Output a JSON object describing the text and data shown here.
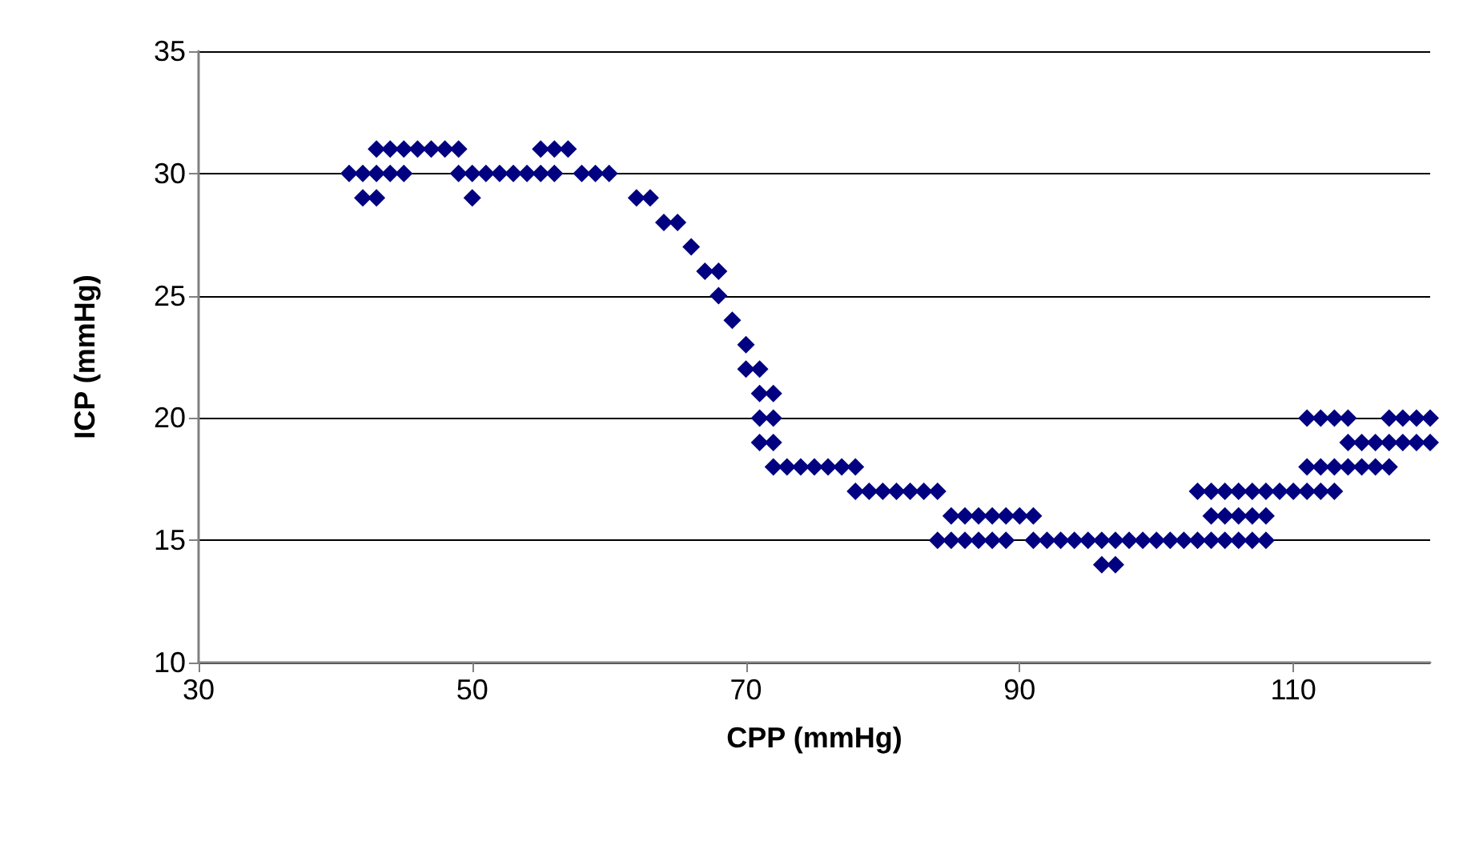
{
  "chart_data": {
    "type": "scatter",
    "xlabel": "CPP (mmHg)",
    "ylabel": "ICP (mmHg)",
    "xlim": [
      30,
      120
    ],
    "xticks": [
      30,
      50,
      70,
      90,
      110
    ],
    "ylim": [
      10,
      35
    ],
    "yticks": [
      10,
      15,
      20,
      25,
      30,
      35
    ],
    "grid": "y",
    "marker": "diamond",
    "series": [
      {
        "color": "#000080",
        "x": [
          41,
          42,
          43,
          44,
          45,
          42,
          43,
          43,
          44,
          45,
          46,
          47,
          48,
          49,
          49,
          50,
          51,
          52,
          53,
          54,
          55,
          56,
          50,
          55,
          56,
          57,
          58,
          59,
          60,
          62,
          63,
          64,
          65,
          66,
          67,
          68,
          68,
          69,
          70,
          70,
          71,
          71,
          72,
          71,
          72,
          71,
          72,
          72,
          73,
          74,
          75,
          76,
          77,
          78,
          78,
          79,
          80,
          81,
          82,
          83,
          84,
          85,
          86,
          87,
          88,
          89,
          90,
          91,
          84,
          85,
          86,
          87,
          88,
          89,
          91,
          92,
          93,
          94,
          95,
          96,
          97,
          98,
          99,
          100,
          101,
          102,
          103,
          104,
          105,
          106,
          107,
          108,
          96,
          97,
          103,
          104,
          105,
          106,
          107,
          108,
          109,
          110,
          111,
          112,
          113,
          104,
          105,
          106,
          107,
          108,
          111,
          112,
          113,
          114,
          115,
          116,
          117,
          111,
          112,
          113,
          114,
          114,
          115,
          116,
          117,
          118,
          119,
          120,
          117,
          118,
          119,
          120
        ],
        "values": [
          30,
          30,
          30,
          30,
          30,
          29,
          29,
          31,
          31,
          31,
          31,
          31,
          31,
          31,
          30,
          30,
          30,
          30,
          30,
          30,
          30,
          30,
          29,
          31,
          31,
          31,
          30,
          30,
          30,
          29,
          29,
          28,
          28,
          27,
          26,
          26,
          25,
          24,
          23,
          22,
          22,
          21,
          21,
          20,
          20,
          19,
          19,
          18,
          18,
          18,
          18,
          18,
          18,
          18,
          17,
          17,
          17,
          17,
          17,
          17,
          17,
          16,
          16,
          16,
          16,
          16,
          16,
          16,
          15,
          15,
          15,
          15,
          15,
          15,
          15,
          15,
          15,
          15,
          15,
          15,
          15,
          15,
          15,
          15,
          15,
          15,
          15,
          15,
          15,
          15,
          15,
          15,
          14,
          14,
          17,
          17,
          17,
          17,
          17,
          17,
          17,
          17,
          17,
          17,
          17,
          16,
          16,
          16,
          16,
          16,
          18,
          18,
          18,
          18,
          18,
          18,
          18,
          20,
          20,
          20,
          20,
          19,
          19,
          19,
          19,
          19,
          19,
          19,
          20,
          20,
          20,
          20
        ]
      }
    ]
  }
}
